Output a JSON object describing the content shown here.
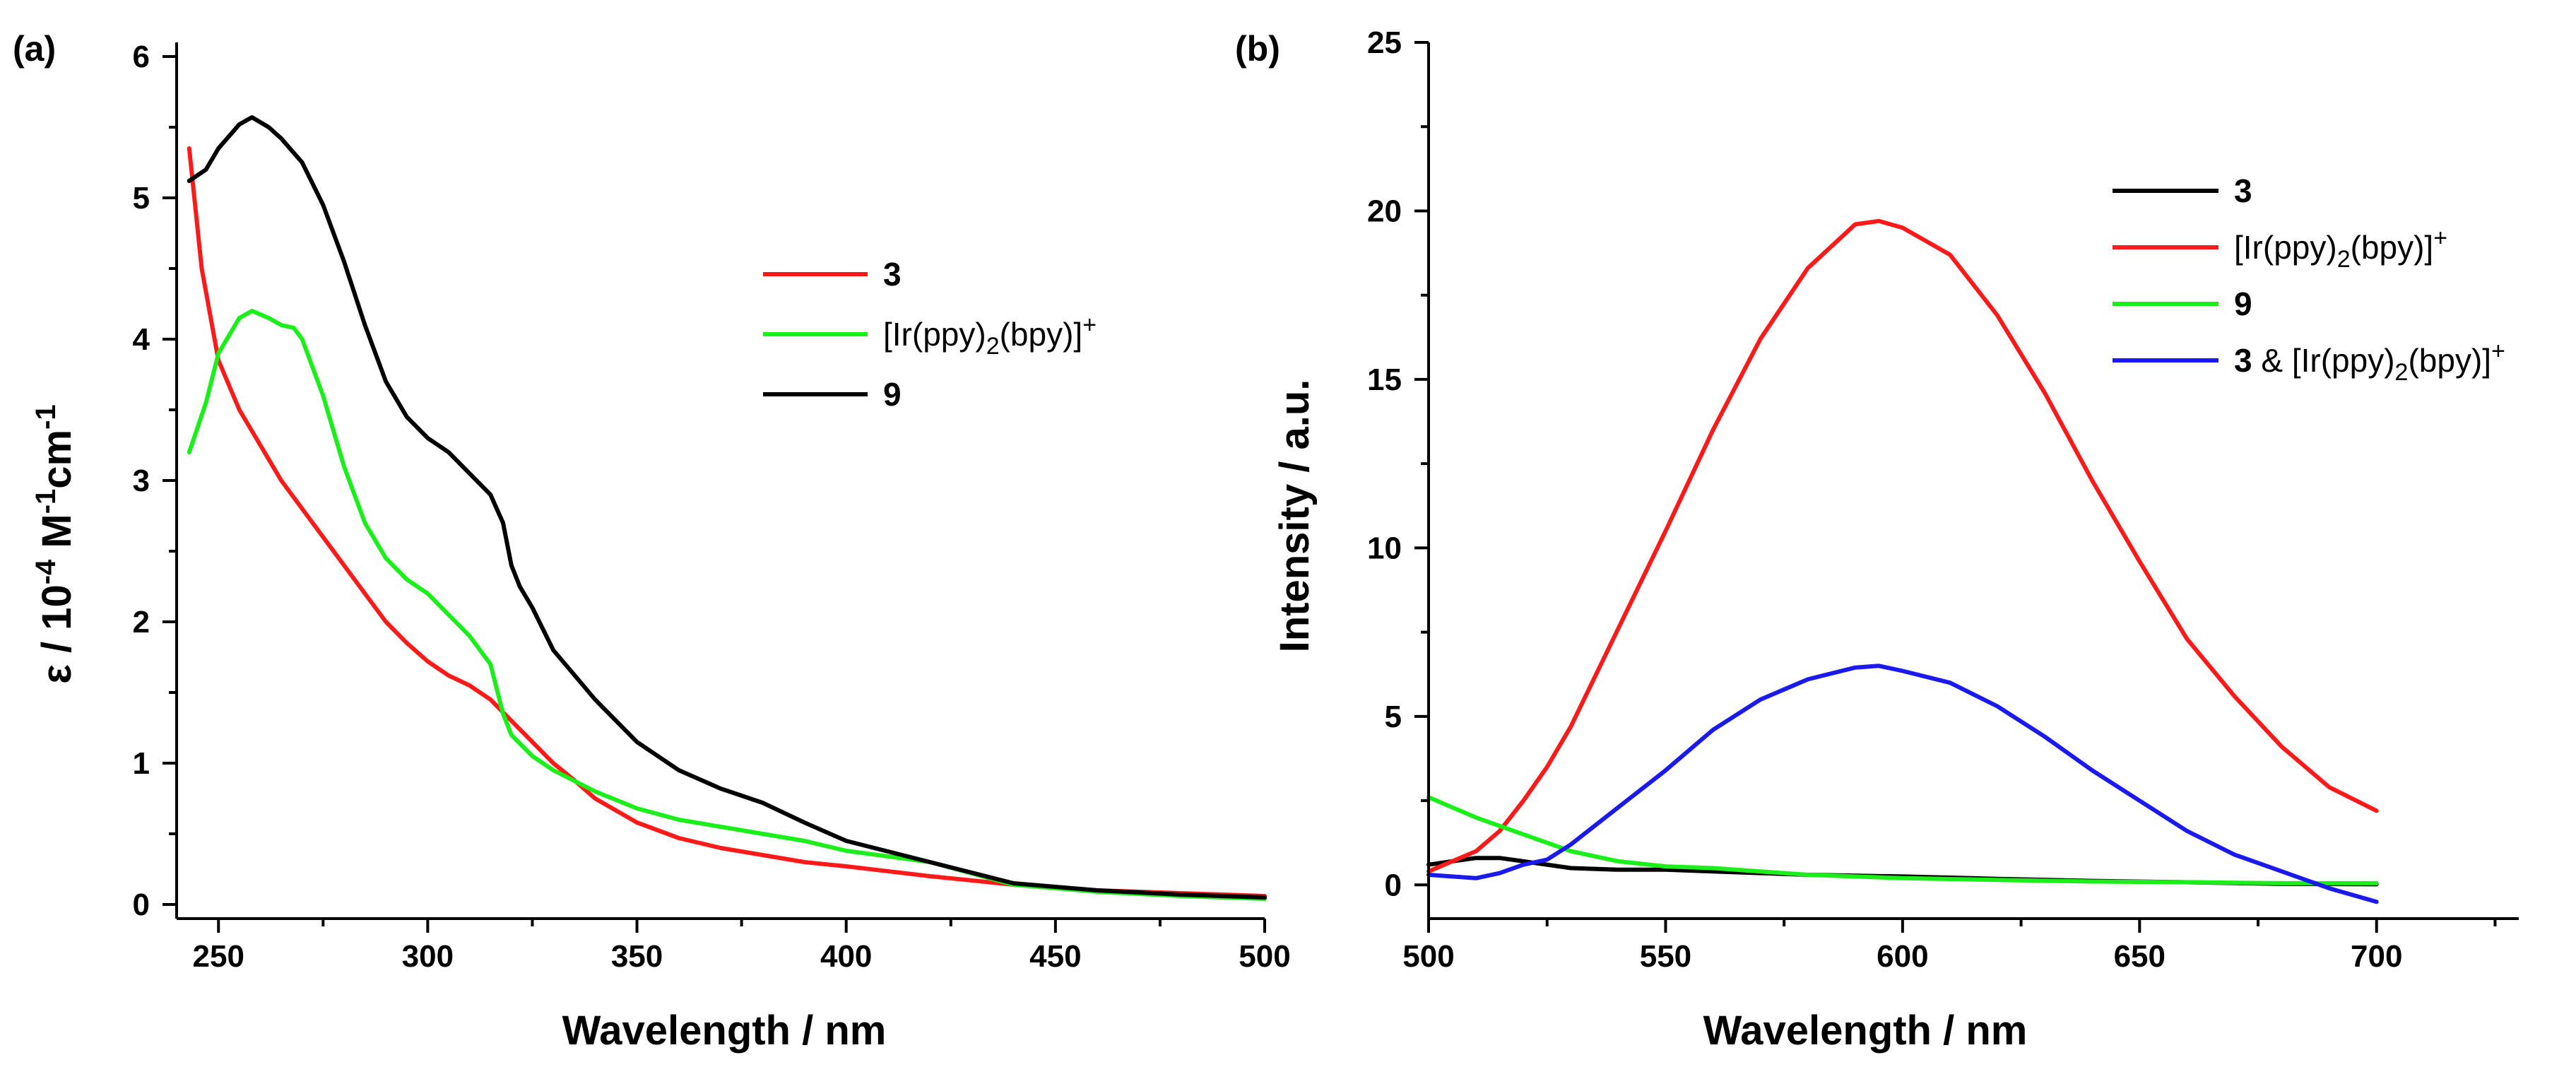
{
  "chart_data": [
    {
      "panel_label": "(a)",
      "type": "line",
      "xlabel": "Wavelength / nm",
      "ylabel_parts": [
        "ε / 10",
        "-4",
        " M",
        "-1",
        "cm",
        "-1"
      ],
      "xlim": [
        240,
        500
      ],
      "ylim": [
        -0.1,
        6.1
      ],
      "xticks": [
        250,
        300,
        350,
        400,
        450,
        500
      ],
      "yticks": [
        0,
        1,
        2,
        3,
        4,
        5,
        6
      ],
      "legend_position": "center-right",
      "series": [
        {
          "name": "3",
          "legend_main": "3",
          "legend_bold": true,
          "color": "#ff1a1a",
          "x": [
            243,
            246,
            250,
            255,
            260,
            265,
            270,
            275,
            280,
            285,
            290,
            295,
            300,
            305,
            310,
            315,
            320,
            325,
            330,
            335,
            340,
            350,
            360,
            370,
            380,
            390,
            400,
            420,
            440,
            460,
            480,
            500
          ],
          "y": [
            5.35,
            4.5,
            3.85,
            3.5,
            3.25,
            3.0,
            2.8,
            2.6,
            2.4,
            2.2,
            2.0,
            1.85,
            1.72,
            1.62,
            1.55,
            1.45,
            1.3,
            1.15,
            1.0,
            0.88,
            0.75,
            0.58,
            0.47,
            0.4,
            0.35,
            0.3,
            0.27,
            0.2,
            0.14,
            0.1,
            0.08,
            0.06
          ]
        },
        {
          "name": "[Ir(ppy)2(bpy)]+",
          "legend_main": "[Ir(ppy)",
          "legend_sub": "2",
          "legend_rest": "(bpy)]",
          "legend_sup": "+",
          "legend_bold": false,
          "color": "#1aef1a",
          "x": [
            243,
            247,
            250,
            255,
            258,
            262,
            265,
            268,
            270,
            275,
            280,
            285,
            290,
            295,
            300,
            305,
            310,
            315,
            318,
            320,
            325,
            330,
            340,
            350,
            360,
            370,
            380,
            390,
            400,
            420,
            440,
            460,
            480,
            500
          ],
          "y": [
            3.2,
            3.55,
            3.9,
            4.15,
            4.2,
            4.15,
            4.1,
            4.08,
            4.0,
            3.6,
            3.1,
            2.7,
            2.45,
            2.3,
            2.2,
            2.05,
            1.9,
            1.7,
            1.35,
            1.2,
            1.05,
            0.95,
            0.8,
            0.68,
            0.6,
            0.55,
            0.5,
            0.45,
            0.38,
            0.3,
            0.14,
            0.09,
            0.06,
            0.04
          ]
        },
        {
          "name": "9",
          "legend_main": "9",
          "legend_bold": true,
          "color": "#000000",
          "x": [
            243,
            247,
            250,
            255,
            258,
            262,
            265,
            270,
            275,
            280,
            285,
            290,
            295,
            300,
            305,
            310,
            315,
            318,
            320,
            322,
            325,
            330,
            340,
            350,
            360,
            370,
            380,
            390,
            400,
            420,
            440,
            460,
            480,
            500
          ],
          "y": [
            5.12,
            5.2,
            5.35,
            5.52,
            5.57,
            5.5,
            5.42,
            5.25,
            4.95,
            4.55,
            4.1,
            3.7,
            3.45,
            3.3,
            3.2,
            3.05,
            2.9,
            2.7,
            2.4,
            2.25,
            2.1,
            1.8,
            1.45,
            1.15,
            0.95,
            0.82,
            0.72,
            0.58,
            0.45,
            0.3,
            0.15,
            0.1,
            0.07,
            0.05
          ]
        }
      ]
    },
    {
      "panel_label": "(b)",
      "type": "line",
      "xlabel": "Wavelength / nm",
      "ylabel": "Intensity / a.u.",
      "xlim": [
        500,
        730
      ],
      "ylim": [
        -1,
        25
      ],
      "xticks": [
        500,
        550,
        600,
        650,
        700
      ],
      "yticks": [
        0,
        5,
        10,
        15,
        20,
        25
      ],
      "legend_position": "top-right",
      "series": [
        {
          "name": "3",
          "legend_main": "3",
          "legend_bold": true,
          "color": "#000000",
          "x": [
            500,
            505,
            510,
            515,
            520,
            530,
            540,
            550,
            560,
            580,
            600,
            620,
            640,
            660,
            680,
            700
          ],
          "y": [
            0.6,
            0.7,
            0.8,
            0.8,
            0.7,
            0.5,
            0.45,
            0.45,
            0.4,
            0.3,
            0.25,
            0.18,
            0.12,
            0.08,
            0.03,
            0.02
          ]
        },
        {
          "name": "[Ir(ppy)2(bpy)]+",
          "legend_main": "[Ir(ppy)",
          "legend_sub": "2",
          "legend_rest": "(bpy)]",
          "legend_sup": "+",
          "legend_bold": false,
          "color": "#ff1a1a",
          "x": [
            500,
            505,
            510,
            515,
            520,
            525,
            530,
            540,
            550,
            560,
            570,
            580,
            590,
            595,
            600,
            610,
            620,
            630,
            640,
            650,
            660,
            670,
            680,
            690,
            700
          ],
          "y": [
            0.4,
            0.7,
            1.0,
            1.6,
            2.5,
            3.5,
            4.7,
            7.6,
            10.5,
            13.5,
            16.2,
            18.3,
            19.6,
            19.7,
            19.5,
            18.7,
            16.9,
            14.6,
            12.0,
            9.6,
            7.3,
            5.6,
            4.1,
            2.9,
            2.2
          ]
        },
        {
          "name": "9",
          "legend_main": "9",
          "legend_bold": true,
          "color": "#1aef1a",
          "x": [
            500,
            505,
            510,
            520,
            530,
            540,
            550,
            560,
            570,
            580,
            600,
            620,
            640,
            660,
            680,
            700
          ],
          "y": [
            2.6,
            2.3,
            2.0,
            1.5,
            1.0,
            0.7,
            0.55,
            0.5,
            0.4,
            0.3,
            0.2,
            0.15,
            0.1,
            0.08,
            0.05,
            0.05
          ]
        },
        {
          "name": "3 & [Ir(ppy)2(bpy)]+",
          "legend_main": "3",
          "legend_main_rest": " & [Ir(ppy)",
          "legend_sub": "2",
          "legend_rest": "(bpy)]",
          "legend_sup": "+",
          "legend_bold": false,
          "color": "#1a1aef",
          "x": [
            500,
            505,
            510,
            515,
            520,
            525,
            530,
            540,
            550,
            560,
            570,
            580,
            590,
            595,
            600,
            610,
            620,
            630,
            640,
            650,
            660,
            670,
            680,
            690,
            700
          ],
          "y": [
            0.3,
            0.25,
            0.2,
            0.35,
            0.6,
            0.75,
            1.2,
            2.3,
            3.4,
            4.6,
            5.5,
            6.1,
            6.45,
            6.5,
            6.35,
            6.0,
            5.3,
            4.4,
            3.4,
            2.5,
            1.6,
            0.9,
            0.4,
            -0.1,
            -0.5
          ]
        }
      ]
    }
  ]
}
